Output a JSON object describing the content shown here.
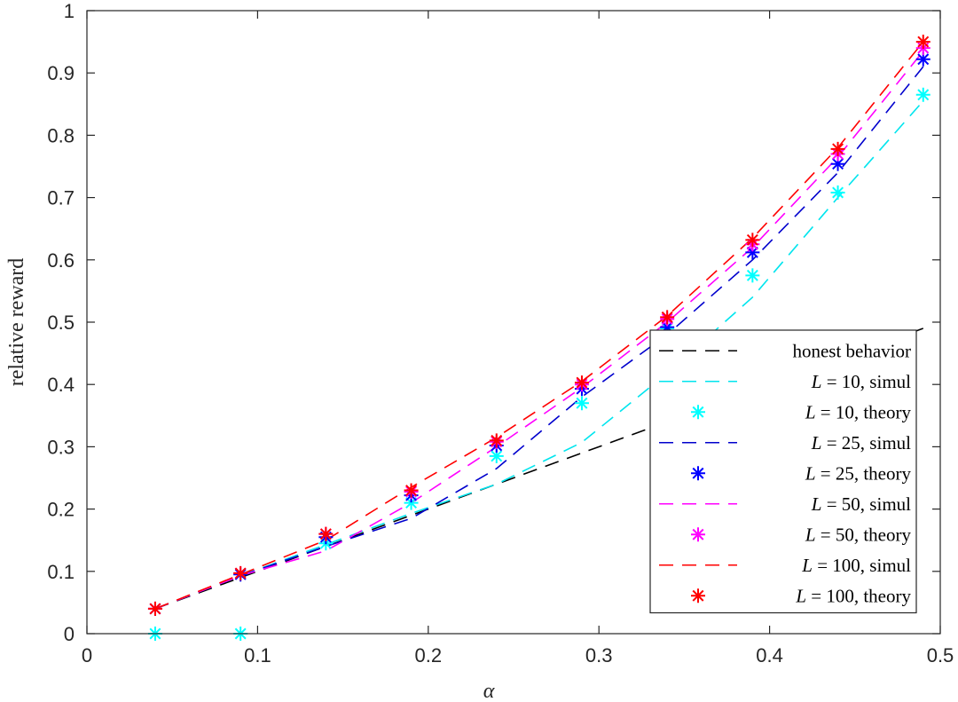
{
  "chart_data": {
    "type": "line",
    "xlabel": "α",
    "ylabel": "relative reward",
    "xlim": [
      0,
      0.5
    ],
    "ylim": [
      0,
      1
    ],
    "xticks": [
      "0",
      "0.1",
      "0.2",
      "0.3",
      "0.4",
      "0.5"
    ],
    "yticks": [
      "0",
      "0.1",
      "0.2",
      "0.3",
      "0.4",
      "0.5",
      "0.6",
      "0.7",
      "0.8",
      "0.9",
      "1"
    ],
    "grid": false,
    "legend_position": "bottom-right",
    "x": [
      0.04,
      0.09,
      0.14,
      0.19,
      0.24,
      0.29,
      0.34,
      0.39,
      0.44,
      0.49
    ],
    "series": [
      {
        "name": "honest behavior",
        "style": "dashed",
        "color": "#000000",
        "values": [
          0.04,
          0.09,
          0.14,
          0.19,
          0.24,
          0.29,
          0.34,
          0.39,
          0.44,
          0.49
        ]
      },
      {
        "name": "L = 10, simul",
        "style": "dashed",
        "color": "#00e5ee",
        "values": [
          0.04,
          0.093,
          0.143,
          0.193,
          0.24,
          0.307,
          0.418,
          0.54,
          0.7,
          0.855
        ]
      },
      {
        "name": "L = 10, theory",
        "style": "marker",
        "color": "#00ffff",
        "values": [
          0.0,
          0.0,
          0.145,
          0.21,
          0.285,
          0.37,
          0.49,
          0.575,
          0.708,
          0.865
        ]
      },
      {
        "name": "L = 25, simul",
        "style": "dashed",
        "color": "#0000cd",
        "values": [
          0.04,
          0.093,
          0.14,
          0.185,
          0.265,
          0.38,
          0.48,
          0.6,
          0.74,
          0.91
        ]
      },
      {
        "name": "L = 25, theory",
        "style": "marker",
        "color": "#0000ff",
        "values": [
          0.04,
          0.095,
          0.155,
          0.222,
          0.302,
          0.393,
          0.492,
          0.612,
          0.754,
          0.922
        ]
      },
      {
        "name": "L = 50, simul",
        "style": "dashed",
        "color": "#ff00ff",
        "values": [
          0.04,
          0.093,
          0.133,
          0.21,
          0.3,
          0.395,
          0.5,
          0.62,
          0.765,
          0.935
        ]
      },
      {
        "name": "L = 50, theory",
        "style": "marker",
        "color": "#ff00ff",
        "values": [
          0.04,
          0.097,
          0.16,
          0.228,
          0.308,
          0.4,
          0.505,
          0.625,
          0.77,
          0.94
        ]
      },
      {
        "name": "L = 100, simul",
        "style": "dashed",
        "color": "#ff0000",
        "values": [
          0.04,
          0.095,
          0.15,
          0.235,
          0.315,
          0.405,
          0.51,
          0.635,
          0.78,
          0.95
        ]
      },
      {
        "name": "L = 100, theory",
        "style": "marker",
        "color": "#ff0000",
        "values": [
          0.04,
          0.097,
          0.16,
          0.23,
          0.31,
          0.403,
          0.508,
          0.632,
          0.778,
          0.95
        ]
      }
    ],
    "legend": [
      {
        "prefix": "",
        "math": "",
        "suffix": "honest behavior"
      },
      {
        "prefix": "",
        "math": "L",
        "suffix": " = 10, simul"
      },
      {
        "prefix": "",
        "math": "L",
        "suffix": " = 10, theory"
      },
      {
        "prefix": "",
        "math": "L",
        "suffix": " = 25, simul"
      },
      {
        "prefix": "",
        "math": "L",
        "suffix": " = 25, theory"
      },
      {
        "prefix": "",
        "math": "L",
        "suffix": " = 50, simul"
      },
      {
        "prefix": "",
        "math": "L",
        "suffix": " = 50, theory"
      },
      {
        "prefix": "",
        "math": "L",
        "suffix": " = 100, simul"
      },
      {
        "prefix": "",
        "math": "L",
        "suffix": " = 100, theory"
      }
    ]
  }
}
